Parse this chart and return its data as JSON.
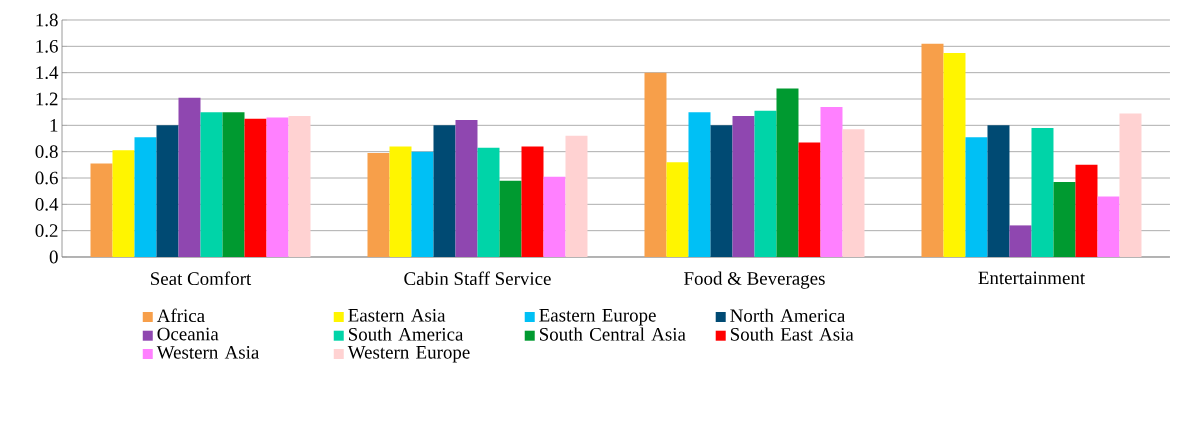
{
  "chart_data": {
    "type": "bar",
    "categories": [
      "Seat Comfort",
      "Cabin Staff Service",
      "Food & Beverages",
      "Entertainment"
    ],
    "series": [
      {
        "name": "Africa",
        "color": "#f79f4a",
        "values": [
          0.71,
          0.79,
          1.4,
          1.62
        ]
      },
      {
        "name": "Eastern Asia",
        "color": "#fff500",
        "values": [
          0.81,
          0.84,
          0.72,
          1.55
        ]
      },
      {
        "name": "Eastern Europe",
        "color": "#00c0f5",
        "values": [
          0.91,
          0.8,
          1.1,
          0.91
        ]
      },
      {
        "name": "North America",
        "color": "#004a73",
        "values": [
          1.0,
          1.0,
          1.0,
          1.0
        ]
      },
      {
        "name": "Oceania",
        "color": "#8f47b0",
        "values": [
          1.21,
          1.04,
          1.07,
          0.24
        ]
      },
      {
        "name": "South America",
        "color": "#00d4a8",
        "values": [
          1.1,
          0.83,
          1.11,
          0.98
        ]
      },
      {
        "name": "South Central Asia",
        "color": "#009a30",
        "values": [
          1.1,
          0.58,
          1.28,
          0.57
        ]
      },
      {
        "name": "South East Asia",
        "color": "#ff0000",
        "values": [
          1.05,
          0.84,
          0.87,
          0.7
        ]
      },
      {
        "name": "Western Asia",
        "color": "#ff80ff",
        "values": [
          1.06,
          0.61,
          1.14,
          0.46
        ]
      },
      {
        "name": "Western Europe",
        "color": "#ffd2d2",
        "values": [
          1.07,
          0.92,
          0.97,
          1.09
        ]
      }
    ],
    "ylim": [
      0,
      1.8
    ],
    "yticks": [
      0,
      0.2,
      0.4,
      0.6,
      0.8,
      1,
      1.2,
      1.4,
      1.6,
      1.8
    ],
    "grid": "y",
    "legend": "bottom"
  }
}
